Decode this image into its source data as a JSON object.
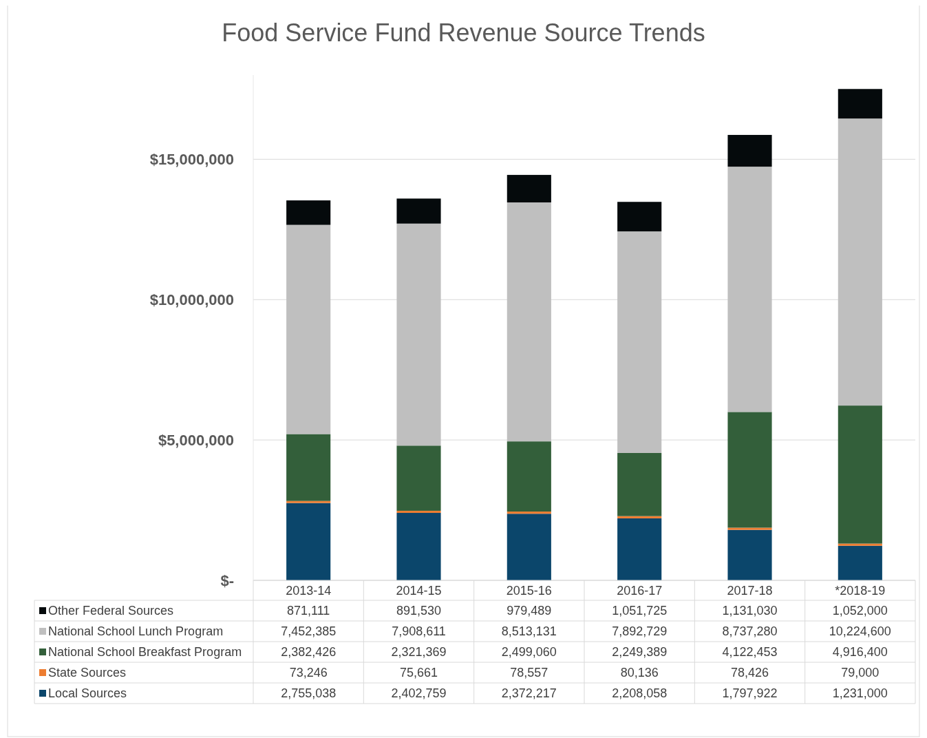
{
  "chart_data": {
    "type": "bar",
    "title": "Food Service Fund Revenue Source Trends",
    "stacked": true,
    "categories": [
      "2013-14",
      "2014-15",
      "2015-16",
      "2016-17",
      "2017-18",
      "*2018-19"
    ],
    "series": [
      {
        "name": "Local Sources",
        "color": "#0b466b",
        "values": [
          2755038,
          2402759,
          2372217,
          2208058,
          1797922,
          1231000
        ],
        "value_labels": [
          "2,755,038",
          "2,402,759",
          "2,372,217",
          "2,208,058",
          "1,797,922",
          "1,231,000"
        ]
      },
      {
        "name": "State Sources",
        "color": "#ed7d31",
        "values": [
          73246,
          75661,
          78557,
          80136,
          78426,
          79000
        ],
        "value_labels": [
          "73,246",
          "75,661",
          "78,557",
          "80,136",
          "78,426",
          "79,000"
        ]
      },
      {
        "name": "National School Breakfast Program",
        "color": "#335f3a",
        "values": [
          2382426,
          2321369,
          2499060,
          2249389,
          4122453,
          4916400
        ],
        "value_labels": [
          "2,382,426",
          "2,321,369",
          "2,499,060",
          "2,249,389",
          "4,122,453",
          "4,916,400"
        ]
      },
      {
        "name": "National School Lunch Program",
        "color": "#bfbfbf",
        "values": [
          7452385,
          7908611,
          8513131,
          7892729,
          8737280,
          10224600
        ],
        "value_labels": [
          "7,452,385",
          "7,908,611",
          "8,513,131",
          "7,892,729",
          "8,737,280",
          "10,224,600"
        ]
      },
      {
        "name": "Other Federal Sources",
        "color": "#050a0c",
        "values": [
          871111,
          891530,
          979489,
          1051725,
          1131030,
          1052000
        ],
        "value_labels": [
          "871,111",
          "891,530",
          "979,489",
          "1,051,725",
          "1,131,030",
          "1,052,000"
        ]
      }
    ],
    "ylim": [
      0,
      18000000
    ],
    "yticks": [
      {
        "value": 0,
        "label": "$-"
      },
      {
        "value": 5000000,
        "label": "$5,000,000"
      },
      {
        "value": 10000000,
        "label": "$10,000,000"
      },
      {
        "value": 15000000,
        "label": "$15,000,000"
      }
    ],
    "grid": "y",
    "legend": "bottom"
  }
}
